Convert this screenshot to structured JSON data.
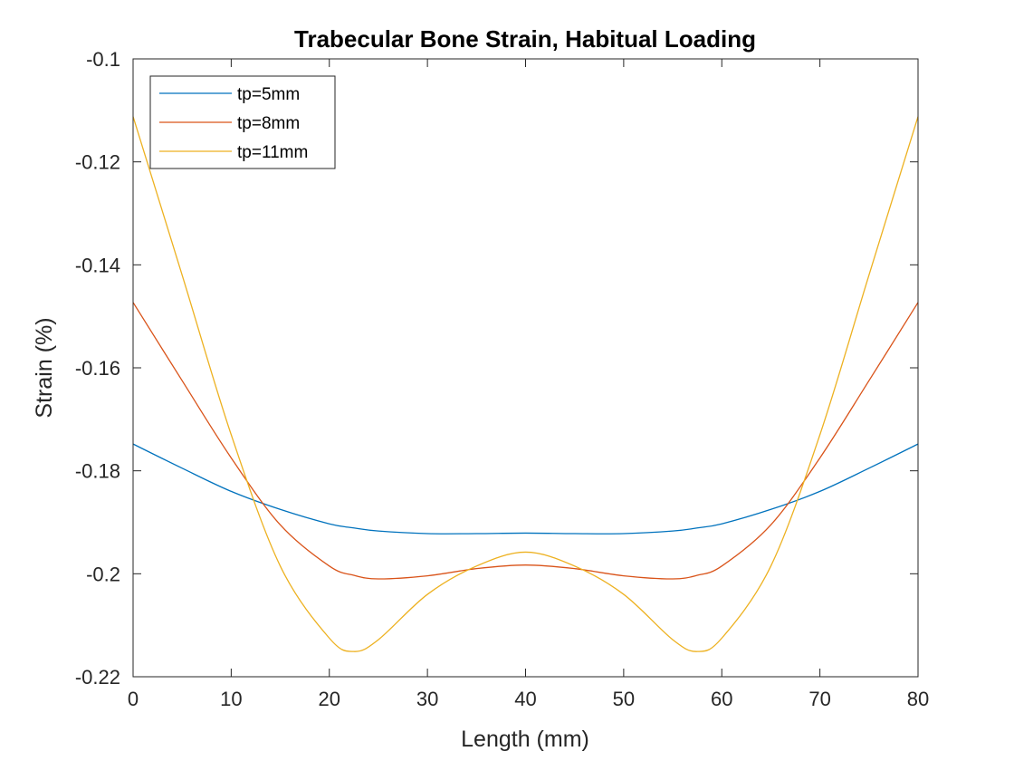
{
  "chart_data": {
    "type": "line",
    "title": "Trabecular Bone Strain, Habitual Loading",
    "xlabel": "Length (mm)",
    "ylabel": "Strain (%)",
    "xlim": [
      0,
      80
    ],
    "ylim": [
      -0.22,
      -0.1
    ],
    "xticks": [
      0,
      10,
      20,
      30,
      40,
      50,
      60,
      70,
      80
    ],
    "yticks": [
      -0.22,
      -0.2,
      -0.18,
      -0.16,
      -0.14,
      -0.12,
      -0.1
    ],
    "xtick_labels": [
      "0",
      "10",
      "20",
      "30",
      "40",
      "50",
      "60",
      "70",
      "80"
    ],
    "ytick_labels": [
      "-0.22",
      "-0.2",
      "-0.18",
      "-0.16",
      "-0.14",
      "-0.12",
      "-0.1"
    ],
    "grid": false,
    "legend_position": "top-left",
    "x": [
      0,
      5,
      10,
      15,
      20,
      22.5,
      25,
      30,
      35,
      40,
      45,
      50,
      55,
      57.5,
      60,
      65,
      70,
      75,
      80
    ],
    "series": [
      {
        "name": "tp=5mm",
        "color": "#0072BD",
        "values": [
          -0.1748,
          -0.1795,
          -0.184,
          -0.1875,
          -0.1903,
          -0.1911,
          -0.1917,
          -0.1922,
          -0.1922,
          -0.1921,
          -0.1922,
          -0.1922,
          -0.1917,
          -0.1911,
          -0.1903,
          -0.1875,
          -0.184,
          -0.1795,
          -0.1748
        ]
      },
      {
        "name": "tp=8mm",
        "color": "#D95319",
        "values": [
          -0.1473,
          -0.1625,
          -0.1775,
          -0.1905,
          -0.1985,
          -0.2003,
          -0.201,
          -0.2004,
          -0.199,
          -0.1983,
          -0.199,
          -0.2004,
          -0.201,
          -0.2003,
          -0.1985,
          -0.1905,
          -0.1775,
          -0.1625,
          -0.1473
        ]
      },
      {
        "name": "tp=11mm",
        "color": "#EDB120",
        "values": [
          -0.1112,
          -0.142,
          -0.173,
          -0.1985,
          -0.2125,
          -0.2151,
          -0.2128,
          -0.204,
          -0.1985,
          -0.1958,
          -0.1985,
          -0.204,
          -0.2128,
          -0.2151,
          -0.2125,
          -0.1985,
          -0.173,
          -0.142,
          -0.1112
        ]
      }
    ]
  }
}
